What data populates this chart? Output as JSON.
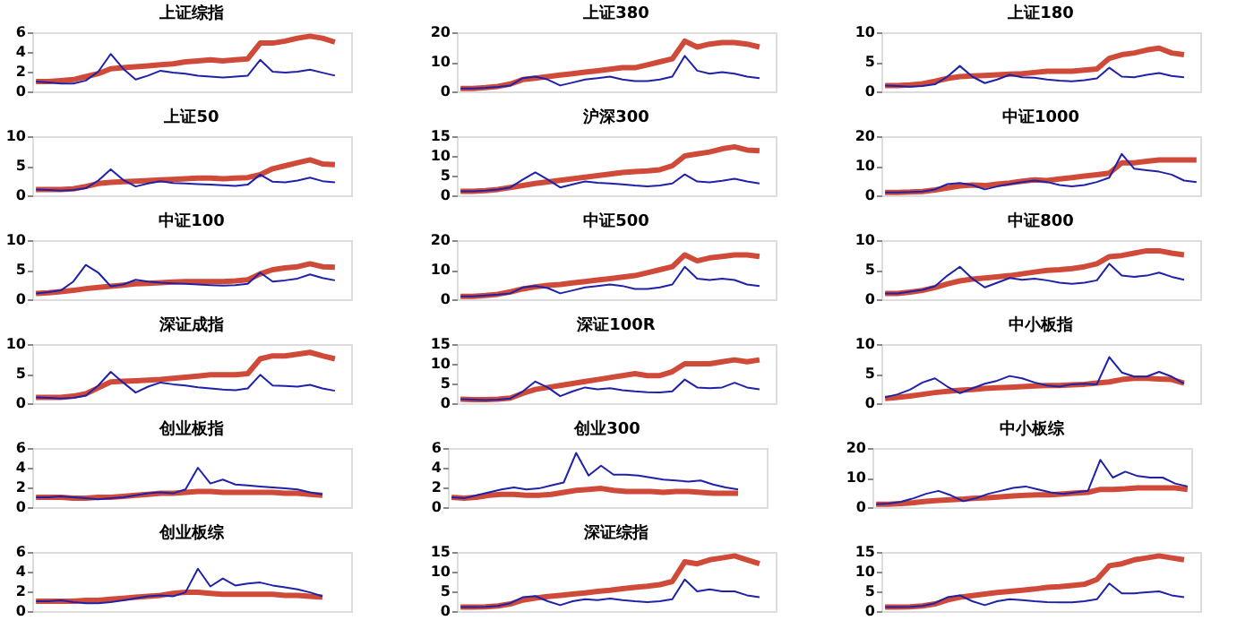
{
  "chart_data": [
    {
      "type": "line",
      "title": "上证综指",
      "categories": [
        null,
        null,
        null,
        null,
        null,
        null,
        null,
        null,
        null,
        null,
        null,
        null,
        null,
        null,
        null,
        null,
        null,
        null,
        null,
        null,
        null,
        null,
        null,
        null,
        null,
        null
      ],
      "ylim": [
        0,
        6
      ],
      "yticks": [
        0,
        2,
        4,
        6
      ],
      "tick_labels": "y",
      "series": [
        {
          "color": "#d04a3a",
          "values": [
            1,
            1,
            1.1,
            1.2,
            1.5,
            1.8,
            2.3,
            2.4,
            2.5,
            2.6,
            2.7,
            2.8,
            3,
            3.1,
            3.2,
            3.1,
            3.2,
            3.3,
            4.9,
            4.9,
            5.1,
            5.4,
            5.6,
            5.4,
            5,
            null
          ]
        },
        {
          "color": "#1f22a8",
          "values": [
            1,
            0.9,
            0.8,
            0.8,
            1.1,
            2,
            3.8,
            2.3,
            1.2,
            1.6,
            2.1,
            1.9,
            1.8,
            1.6,
            1.5,
            1.4,
            1.5,
            1.6,
            3.2,
            2,
            1.9,
            2,
            2.2,
            1.9,
            1.6,
            null
          ]
        }
      ]
    },
    {
      "type": "line",
      "title": "上证380",
      "categories": [
        null,
        null,
        null,
        null,
        null,
        null,
        null,
        null,
        null,
        null,
        null,
        null,
        null,
        null,
        null,
        null,
        null,
        null,
        null,
        null,
        null,
        null,
        null,
        null,
        null,
        null
      ],
      "ylim": [
        0,
        20
      ],
      "yticks": [
        0,
        10,
        20
      ],
      "tick_labels": "y",
      "series": [
        {
          "color": "#d04a3a",
          "values": [
            1,
            1,
            1.3,
            1.7,
            2.5,
            4,
            4.5,
            5,
            5.5,
            6,
            6.5,
            7,
            7.5,
            8,
            8,
            9,
            10,
            11,
            17,
            15,
            16,
            16.5,
            16.5,
            16,
            15,
            null
          ]
        },
        {
          "color": "#1f22a8",
          "values": [
            1,
            1,
            1.2,
            1.5,
            2,
            4.5,
            5,
            4,
            2,
            3,
            4,
            4.5,
            5,
            4,
            3.5,
            3.5,
            4,
            5,
            12,
            7,
            6,
            6.5,
            6,
            5,
            4.5,
            null
          ]
        }
      ]
    },
    {
      "type": "line",
      "title": "上证180",
      "categories": [
        null,
        null,
        null,
        null,
        null,
        null,
        null,
        null,
        null,
        null,
        null,
        null,
        null,
        null,
        null,
        null,
        null,
        null,
        null,
        null,
        null,
        null,
        null,
        null,
        null,
        null
      ],
      "ylim": [
        0,
        10
      ],
      "yticks": [
        0,
        5,
        10
      ],
      "tick_labels": "y",
      "series": [
        {
          "color": "#d04a3a",
          "values": [
            1,
            1,
            1.1,
            1.3,
            1.7,
            2.2,
            2.5,
            2.6,
            2.7,
            2.8,
            2.9,
            3,
            3.2,
            3.4,
            3.4,
            3.4,
            3.6,
            3.8,
            5.6,
            6.2,
            6.5,
            7,
            7.3,
            6.5,
            6.2,
            null
          ]
        },
        {
          "color": "#1f22a8",
          "values": [
            1,
            0.9,
            0.8,
            0.9,
            1.2,
            2.5,
            4.3,
            2.5,
            1.4,
            2,
            2.8,
            2.4,
            2.3,
            2,
            1.8,
            1.7,
            1.9,
            2.2,
            4,
            2.5,
            2.4,
            2.8,
            3.1,
            2.6,
            2.4,
            null
          ]
        }
      ]
    },
    {
      "type": "line",
      "title": "上证50",
      "categories": [
        null,
        null,
        null,
        null,
        null,
        null,
        null,
        null,
        null,
        null,
        null,
        null,
        null,
        null,
        null,
        null,
        null,
        null,
        null,
        null,
        null,
        null,
        null,
        null,
        null,
        null
      ],
      "ylim": [
        0,
        10
      ],
      "yticks": [
        0,
        5,
        10
      ],
      "tick_labels": "y",
      "series": [
        {
          "color": "#d04a3a",
          "values": [
            1,
            1,
            1,
            1.1,
            1.5,
            2,
            2.2,
            2.3,
            2.4,
            2.5,
            2.6,
            2.7,
            2.8,
            2.9,
            2.9,
            2.8,
            2.9,
            3,
            3.5,
            4.5,
            5,
            5.5,
            6,
            5.3,
            5.2,
            null
          ]
        },
        {
          "color": "#1f22a8",
          "values": [
            1,
            0.9,
            0.8,
            0.9,
            1.2,
            2.5,
            4.4,
            2.6,
            1.5,
            2,
            2.4,
            2.1,
            2,
            1.9,
            1.8,
            1.7,
            1.6,
            1.8,
            3.5,
            2.3,
            2.2,
            2.5,
            3,
            2.4,
            2.2,
            null
          ]
        }
      ]
    },
    {
      "type": "line",
      "title": "沪深300",
      "categories": [
        null,
        null,
        null,
        null,
        null,
        null,
        null,
        null,
        null,
        null,
        null,
        null,
        null,
        null,
        null,
        null,
        null,
        null,
        null,
        null,
        null,
        null,
        null,
        null,
        null,
        null
      ],
      "ylim": [
        0,
        15
      ],
      "yticks": [
        0,
        5,
        10,
        15
      ],
      "tick_labels": "y",
      "series": [
        {
          "color": "#d04a3a",
          "values": [
            1,
            1,
            1.2,
            1.5,
            2,
            2.5,
            3,
            3.4,
            3.8,
            4.2,
            4.6,
            5,
            5.4,
            5.8,
            6,
            6.2,
            6.5,
            7.5,
            10,
            10.5,
            11,
            11.8,
            12.3,
            11.5,
            11.3,
            null
          ]
        },
        {
          "color": "#1f22a8",
          "values": [
            1,
            1,
            1.2,
            1.5,
            2,
            4,
            5.8,
            4,
            2,
            2.8,
            3.5,
            3.2,
            3,
            2.8,
            2.5,
            2.3,
            2.5,
            3,
            5.3,
            3.5,
            3.3,
            3.7,
            4.2,
            3.5,
            3,
            null
          ]
        }
      ]
    },
    {
      "type": "line",
      "title": "中证1000",
      "categories": [
        null,
        null,
        null,
        null,
        null,
        null,
        null,
        null,
        null,
        null,
        null,
        null,
        null,
        null,
        null,
        null,
        null,
        null,
        null,
        null,
        null,
        null,
        null,
        null,
        null,
        null
      ],
      "ylim": [
        0,
        20
      ],
      "yticks": [
        0,
        10,
        20
      ],
      "tick_labels": "y",
      "series": [
        {
          "color": "#d04a3a",
          "values": [
            1,
            1,
            1.1,
            1.3,
            1.8,
            2.5,
            3.2,
            3.5,
            3.3,
            3.8,
            4.2,
            4.8,
            5.2,
            5,
            5.5,
            6,
            6.5,
            7,
            7.5,
            11,
            11,
            11.5,
            12,
            12,
            12,
            12
          ]
        },
        {
          "color": "#1f22a8",
          "values": [
            1,
            1,
            1.1,
            1.3,
            2,
            3.8,
            4.2,
            3.5,
            2,
            3,
            3.8,
            4.5,
            5,
            4.5,
            3.5,
            3,
            3.5,
            4.5,
            6,
            14,
            9,
            8.5,
            8,
            7,
            5,
            4.5
          ]
        }
      ]
    },
    {
      "type": "line",
      "title": "中证100",
      "categories": [
        null,
        null,
        null,
        null,
        null,
        null,
        null,
        null,
        null,
        null,
        null,
        null,
        null,
        null,
        null,
        null,
        null,
        null,
        null,
        null,
        null,
        null,
        null,
        null,
        null,
        null
      ],
      "ylim": [
        0,
        10
      ],
      "yticks": [
        0,
        5,
        10
      ],
      "tick_labels": "y",
      "series": [
        {
          "color": "#d04a3a",
          "values": [
            1,
            1.1,
            1.3,
            1.5,
            1.8,
            2,
            2.2,
            2.4,
            2.6,
            2.7,
            2.8,
            2.9,
            3,
            3,
            3,
            3,
            3.1,
            3.3,
            4.3,
            5,
            5.3,
            5.5,
            6,
            5.5,
            5.4,
            null
          ]
        },
        {
          "color": "#1f22a8",
          "values": [
            1,
            1.2,
            1.5,
            3,
            5.8,
            4.5,
            2.2,
            2.5,
            3.3,
            3,
            2.8,
            2.7,
            2.6,
            2.5,
            2.4,
            2.3,
            2.4,
            2.6,
            4.5,
            3,
            3.2,
            3.5,
            4.2,
            3.6,
            3.2,
            null
          ]
        }
      ]
    },
    {
      "type": "line",
      "title": "中证500",
      "categories": [
        null,
        null,
        null,
        null,
        null,
        null,
        null,
        null,
        null,
        null,
        null,
        null,
        null,
        null,
        null,
        null,
        null,
        null,
        null,
        null,
        null,
        null,
        null,
        null,
        null,
        null
      ],
      "ylim": [
        0,
        20
      ],
      "yticks": [
        0,
        10,
        20
      ],
      "tick_labels": "y",
      "series": [
        {
          "color": "#d04a3a",
          "values": [
            1,
            1,
            1.3,
            1.7,
            2.5,
            3.5,
            4.2,
            4.7,
            5,
            5.5,
            6,
            6.5,
            7,
            7.5,
            8,
            9,
            10,
            11,
            15,
            13,
            14,
            14.5,
            15,
            15,
            14.5,
            null
          ]
        },
        {
          "color": "#1f22a8",
          "values": [
            1,
            1,
            1.3,
            1.6,
            2,
            4,
            4.5,
            3.8,
            2,
            3,
            4,
            4.5,
            5,
            4.5,
            3.5,
            3.5,
            4,
            5,
            11,
            7,
            6.5,
            7,
            6.5,
            5,
            4.5,
            null
          ]
        }
      ]
    },
    {
      "type": "line",
      "title": "中证800",
      "categories": [
        null,
        null,
        null,
        null,
        null,
        null,
        null,
        null,
        null,
        null,
        null,
        null,
        null,
        null,
        null,
        null,
        null,
        null,
        null,
        null,
        null,
        null,
        null,
        null,
        null,
        null
      ],
      "ylim": [
        0,
        10
      ],
      "yticks": [
        0,
        5,
        10
      ],
      "tick_labels": "y",
      "series": [
        {
          "color": "#d04a3a",
          "values": [
            1,
            1,
            1.2,
            1.5,
            2,
            2.6,
            3.1,
            3.4,
            3.6,
            3.8,
            4,
            4.3,
            4.6,
            4.9,
            5,
            5.2,
            5.5,
            6,
            7.2,
            7.4,
            7.8,
            8.2,
            8.2,
            7.8,
            7.5,
            null
          ]
        },
        {
          "color": "#1f22a8",
          "values": [
            1,
            1,
            1.3,
            1.6,
            2.2,
            4,
            5.5,
            3.5,
            2,
            2.8,
            3.6,
            3.3,
            3.5,
            3.2,
            2.8,
            2.6,
            2.8,
            3.2,
            6,
            4,
            3.8,
            4,
            4.5,
            3.8,
            3.3,
            null
          ]
        }
      ]
    },
    {
      "type": "line",
      "title": "深证成指",
      "categories": [
        null,
        null,
        null,
        null,
        null,
        null,
        null,
        null,
        null,
        null,
        null,
        null,
        null,
        null,
        null,
        null,
        null,
        null,
        null,
        null,
        null,
        null,
        null,
        null,
        null,
        null
      ],
      "ylim": [
        0,
        10
      ],
      "yticks": [
        0,
        5,
        10
      ],
      "tick_labels": "y",
      "series": [
        {
          "color": "#d04a3a",
          "values": [
            1,
            1,
            1,
            1.2,
            1.6,
            2.6,
            3.6,
            3.7,
            3.8,
            3.9,
            4,
            4.2,
            4.4,
            4.6,
            4.8,
            4.8,
            4.8,
            5,
            7.5,
            8,
            8,
            8.3,
            8.6,
            8,
            7.5,
            null
          ]
        },
        {
          "color": "#1f22a8",
          "values": [
            1,
            0.9,
            0.8,
            0.9,
            1.3,
            3,
            5.3,
            3.5,
            1.8,
            2.8,
            3.5,
            3.2,
            3,
            2.7,
            2.5,
            2.3,
            2.2,
            2.5,
            4.8,
            3,
            2.9,
            2.8,
            3.1,
            2.5,
            2.1,
            null
          ]
        }
      ]
    },
    {
      "type": "line",
      "title": "深证100R",
      "categories": [
        null,
        null,
        null,
        null,
        null,
        null,
        null,
        null,
        null,
        null,
        null,
        null,
        null,
        null,
        null,
        null,
        null,
        null,
        null,
        null,
        null,
        null,
        null,
        null,
        null,
        null
      ],
      "ylim": [
        0,
        15
      ],
      "yticks": [
        0,
        5,
        10,
        15
      ],
      "tick_labels": "y",
      "series": [
        {
          "color": "#d04a3a",
          "values": [
            1,
            0.9,
            0.9,
            1,
            1.3,
            2.5,
            3.5,
            4,
            4.5,
            5,
            5.5,
            6,
            6.5,
            7,
            7.5,
            7,
            7,
            8,
            10,
            10,
            10,
            10.5,
            11,
            10.5,
            11,
            null
          ]
        },
        {
          "color": "#1f22a8",
          "values": [
            1,
            0.9,
            0.8,
            0.9,
            1.2,
            3,
            5.5,
            4,
            1.8,
            3,
            4,
            3.5,
            3.8,
            3.3,
            3,
            2.8,
            2.7,
            3,
            6,
            4,
            3.8,
            4,
            5.2,
            4,
            3.5,
            null
          ]
        }
      ]
    },
    {
      "type": "line",
      "title": "中小板指",
      "categories": [
        null,
        null,
        null,
        null,
        null,
        null,
        null,
        null,
        null,
        null,
        null,
        null,
        null,
        null,
        null,
        null,
        null,
        null,
        null,
        null,
        null,
        null,
        null,
        null,
        null,
        null
      ],
      "ylim": [
        0,
        10
      ],
      "yticks": [
        0,
        5,
        10
      ],
      "tick_labels": "y",
      "series": [
        {
          "color": "#d04a3a",
          "values": [
            0.8,
            1,
            1.2,
            1.5,
            1.8,
            2,
            2.2,
            2.3,
            2.5,
            2.6,
            2.7,
            2.8,
            2.9,
            3,
            3,
            3.1,
            3.2,
            3.4,
            3.6,
            4,
            4.2,
            4.2,
            4.1,
            4,
            3.4,
            null
          ]
        },
        {
          "color": "#1f22a8",
          "values": [
            1,
            1.5,
            2.3,
            3.5,
            4.2,
            2.8,
            1.7,
            2.5,
            3.3,
            3.8,
            4.6,
            4.2,
            3.5,
            3,
            2.8,
            3.2,
            3.3,
            3.2,
            7.8,
            5.2,
            4.5,
            4.5,
            5.3,
            4.5,
            3.3,
            null
          ]
        }
      ]
    },
    {
      "type": "line",
      "title": "创业板指",
      "categories": [
        null,
        null,
        null,
        null,
        null,
        null,
        null,
        null,
        null,
        null,
        null,
        null,
        null,
        null,
        null,
        null,
        null,
        null,
        null,
        null,
        null,
        null,
        null,
        null,
        null,
        null
      ],
      "ylim": [
        0,
        6
      ],
      "yticks": [
        0,
        2,
        4,
        6
      ],
      "tick_labels": "y",
      "series": [
        {
          "color": "#d04a3a",
          "values": [
            1,
            1,
            1,
            0.9,
            0.9,
            1,
            1,
            1.1,
            1.2,
            1.3,
            1.4,
            1.4,
            1.5,
            1.6,
            1.6,
            1.5,
            1.5,
            1.5,
            1.5,
            1.5,
            1.4,
            1.4,
            1.3,
            1.2,
            null,
            null
          ]
        },
        {
          "color": "#1f22a8",
          "values": [
            1,
            1,
            1.1,
            1,
            0.9,
            0.8,
            0.9,
            1,
            1.2,
            1.4,
            1.5,
            1.4,
            1.8,
            4,
            2.4,
            2.8,
            2.3,
            2.2,
            2.1,
            2,
            1.9,
            1.8,
            1.5,
            1.3,
            null,
            null
          ]
        }
      ]
    },
    {
      "type": "line",
      "title": "创业300",
      "categories": [
        null,
        null,
        null,
        null,
        null,
        null,
        null,
        null,
        null,
        null,
        null,
        null,
        null,
        null,
        null,
        null,
        null,
        null,
        null,
        null,
        null,
        null,
        null,
        null,
        null,
        null
      ],
      "ylim": [
        0,
        6
      ],
      "yticks": [
        0,
        2,
        4,
        6
      ],
      "tick_labels": "y",
      "series": [
        {
          "color": "#d04a3a",
          "values": [
            1,
            0.9,
            1,
            1.2,
            1.3,
            1.3,
            1.2,
            1.2,
            1.3,
            1.5,
            1.7,
            1.8,
            1.9,
            1.7,
            1.6,
            1.6,
            1.6,
            1.5,
            1.6,
            1.6,
            1.5,
            1.4,
            1.4,
            1.4,
            null,
            null
          ]
        },
        {
          "color": "#1f22a8",
          "values": [
            1,
            0.9,
            1.2,
            1.5,
            1.8,
            2,
            1.8,
            1.9,
            2.2,
            2.5,
            5.5,
            3.2,
            4.2,
            3.3,
            3.3,
            3.2,
            3,
            2.8,
            2.7,
            2.6,
            2.7,
            2.3,
            2,
            1.8,
            null,
            null
          ]
        }
      ]
    },
    {
      "type": "line",
      "title": "中小板综",
      "categories": [
        null,
        null,
        null,
        null,
        null,
        null,
        null,
        null,
        null,
        null,
        null,
        null,
        null,
        null,
        null,
        null,
        null,
        null,
        null,
        null,
        null,
        null,
        null,
        null,
        null,
        null
      ],
      "ylim": [
        0,
        20
      ],
      "yticks": [
        0,
        10,
        20
      ],
      "tick_labels": "y",
      "series": [
        {
          "color": "#d04a3a",
          "values": [
            1,
            1,
            1.2,
            1.5,
            2,
            2.3,
            2.5,
            2.7,
            3,
            3.2,
            3.5,
            3.8,
            4,
            4.2,
            4.2,
            4.5,
            4.8,
            5,
            6,
            6,
            6.2,
            6.5,
            6.5,
            6.5,
            6.5,
            6
          ]
        },
        {
          "color": "#1f22a8",
          "values": [
            1,
            1.2,
            1.8,
            3,
            4.5,
            5.5,
            4,
            2,
            3,
            4.5,
            5.5,
            6.5,
            7,
            6,
            5,
            4.5,
            5,
            5.5,
            16,
            10,
            12,
            10.5,
            10,
            10,
            8,
            7
          ]
        }
      ]
    },
    {
      "type": "line",
      "title": "创业板综",
      "categories": [
        null,
        null,
        null,
        null,
        null,
        null,
        null,
        null,
        null,
        null,
        null,
        null,
        null,
        null,
        null,
        null,
        null,
        null,
        null,
        null,
        null,
        null,
        null,
        null,
        null,
        null
      ],
      "ylim": [
        0,
        6
      ],
      "yticks": [
        0,
        2,
        4,
        6
      ],
      "tick_labels": "y",
      "series": [
        {
          "color": "#d04a3a",
          "values": [
            1,
            1,
            1,
            1,
            1.1,
            1.1,
            1.2,
            1.3,
            1.4,
            1.5,
            1.6,
            1.8,
            1.9,
            1.9,
            1.8,
            1.7,
            1.7,
            1.7,
            1.7,
            1.7,
            1.6,
            1.6,
            1.5,
            1.4,
            null,
            null
          ]
        },
        {
          "color": "#1f22a8",
          "values": [
            1,
            1,
            1.1,
            0.9,
            0.8,
            0.8,
            0.9,
            1.1,
            1.3,
            1.5,
            1.6,
            1.5,
            1.9,
            4.3,
            2.5,
            3.3,
            2.6,
            2.8,
            2.9,
            2.6,
            2.4,
            2.2,
            1.9,
            1.5,
            null,
            null
          ]
        }
      ]
    },
    {
      "type": "line",
      "title": "深证综指",
      "categories": [
        null,
        null,
        null,
        null,
        null,
        null,
        null,
        null,
        null,
        null,
        null,
        null,
        null,
        null,
        null,
        null,
        null,
        null,
        null,
        null,
        null,
        null,
        null,
        null,
        null,
        null
      ],
      "ylim": [
        0,
        15
      ],
      "yticks": [
        0,
        5,
        10,
        15
      ],
      "tick_labels": "y",
      "series": [
        {
          "color": "#d04a3a",
          "values": [
            1,
            1,
            1.1,
            1.3,
            1.8,
            2.8,
            3.3,
            3.7,
            4,
            4.3,
            4.6,
            5,
            5.3,
            5.7,
            6,
            6.3,
            6.7,
            7.5,
            12.5,
            12,
            13,
            13.5,
            14,
            13,
            12,
            null
          ]
        },
        {
          "color": "#1f22a8",
          "values": [
            1,
            1,
            1.1,
            1.3,
            2,
            3.5,
            3.8,
            2.5,
            1.5,
            2.5,
            3,
            2.8,
            3.2,
            2.8,
            2.5,
            2.3,
            2.5,
            3,
            8,
            5,
            5.5,
            5,
            5,
            4,
            3.5,
            null
          ]
        }
      ]
    },
    {
      "type": "line",
      "categories": [
        null,
        null,
        null,
        null,
        null,
        null,
        null,
        null,
        null,
        null,
        null,
        null,
        null,
        null,
        null,
        null,
        null,
        null,
        null,
        null,
        null,
        null,
        null,
        null,
        null,
        null
      ],
      "ylim": [
        0,
        15
      ],
      "yticks": [
        0,
        5,
        10,
        15
      ],
      "tick_labels": "y",
      "series": [
        {
          "color": "#d04a3a",
          "values": [
            1,
            1,
            1.1,
            1.3,
            1.8,
            2.8,
            3.5,
            3.9,
            4.3,
            4.7,
            5,
            5.3,
            5.6,
            6,
            6.2,
            6.5,
            6.8,
            8,
            11.5,
            12,
            13,
            13.5,
            14,
            13.5,
            13,
            null
          ]
        },
        {
          "color": "#1f22a8",
          "values": [
            1,
            1,
            1.1,
            1.3,
            2,
            3.5,
            4,
            2.5,
            1.5,
            2.5,
            3,
            2.8,
            2.5,
            2.3,
            2.2,
            2.2,
            2.5,
            3,
            7,
            4.5,
            4.5,
            4.8,
            5,
            4,
            3.5,
            null
          ]
        }
      ]
    }
  ]
}
